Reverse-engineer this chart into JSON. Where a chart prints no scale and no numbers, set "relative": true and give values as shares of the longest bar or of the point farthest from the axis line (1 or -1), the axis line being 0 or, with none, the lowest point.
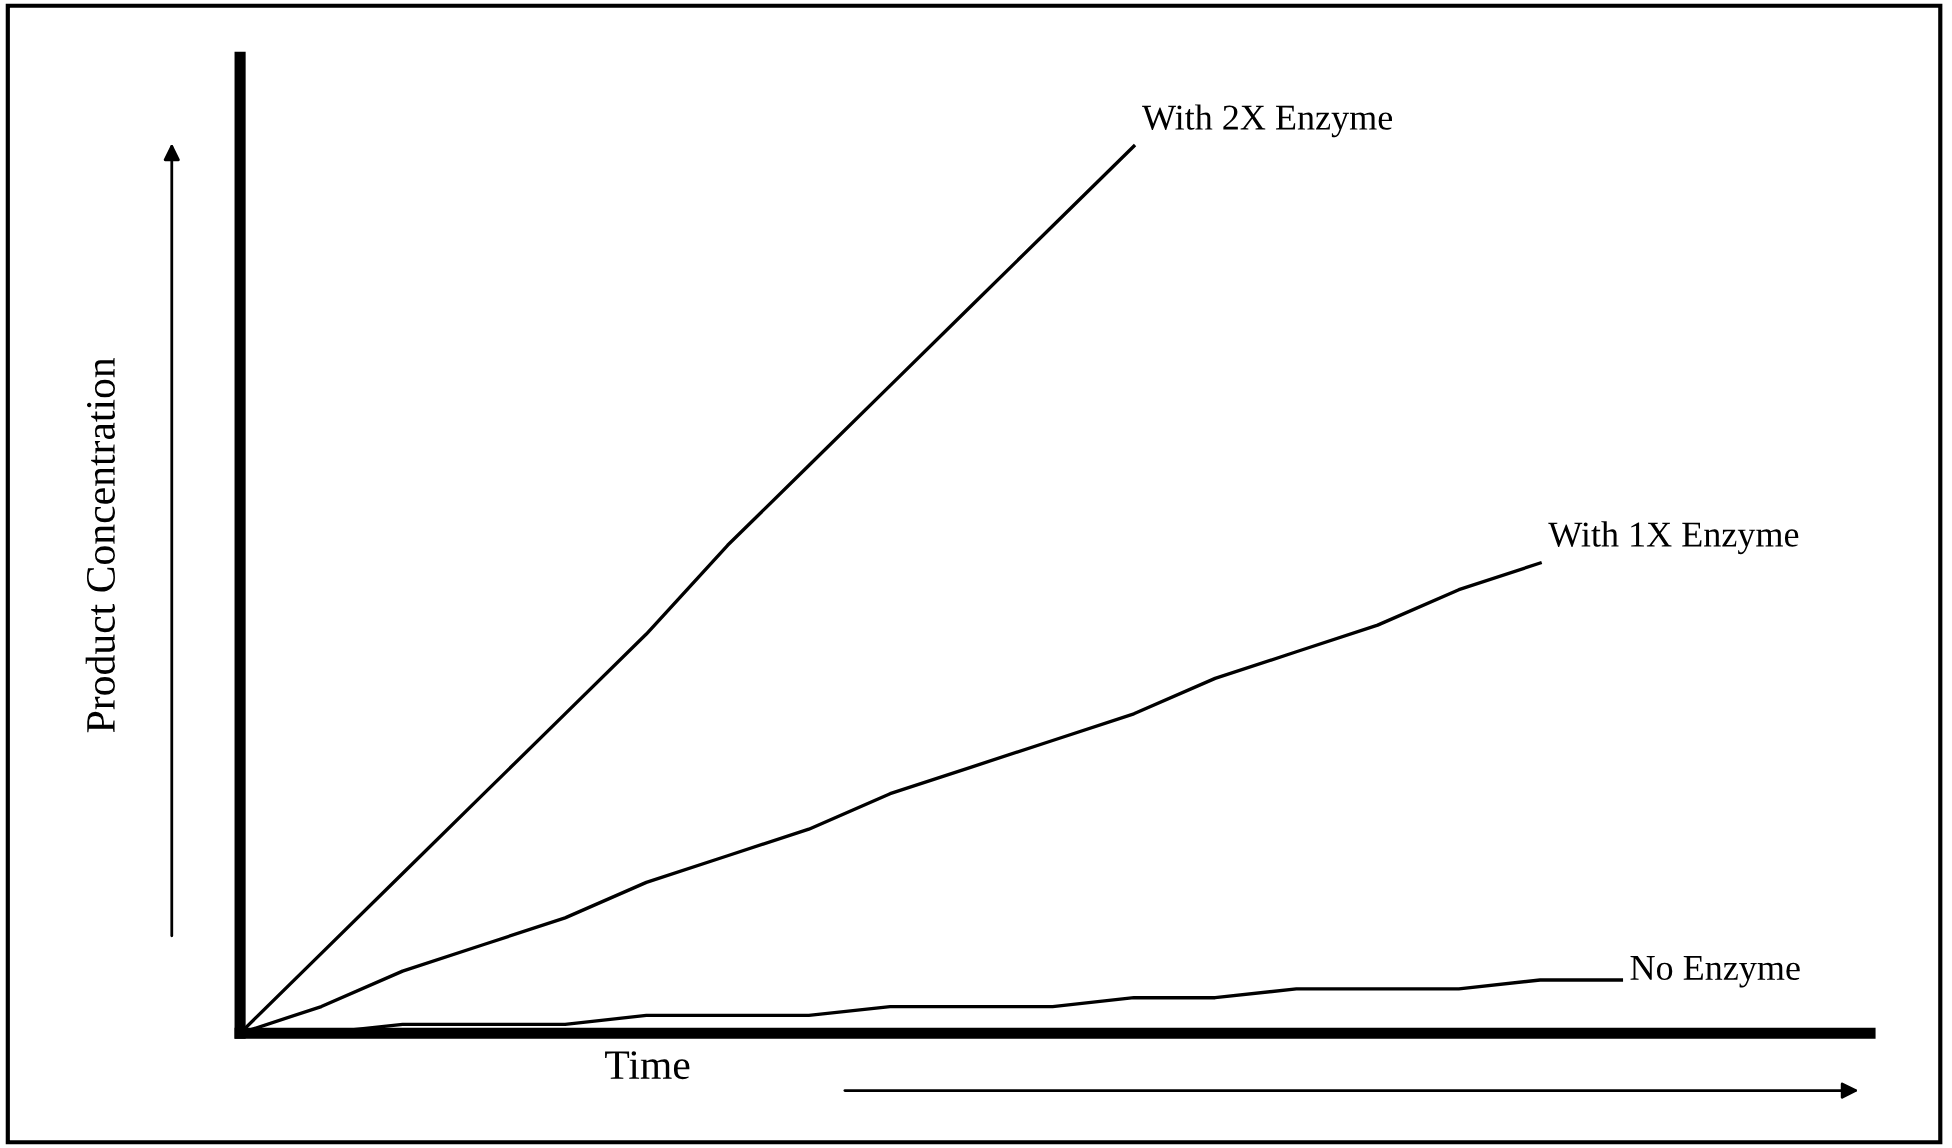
{
  "chart_data": {
    "type": "line",
    "relative": true,
    "xlabel": "Time",
    "ylabel": "Product Concentration",
    "categories": [
      null,
      null,
      null,
      null,
      null,
      null,
      null,
      null,
      null,
      null,
      null,
      null,
      null,
      null,
      null,
      null,
      null,
      null
    ],
    "series": [
      {
        "name": "With 2X Enzyme",
        "color": "#000000",
        "values": [
          0,
          0.09,
          0.18,
          0.27,
          0.36,
          0.45,
          0.55,
          0.64,
          0.73,
          0.82,
          0.91,
          1,
          null,
          null,
          null,
          null,
          null,
          null
        ]
      },
      {
        "name": "With 1X Enzyme",
        "color": "#000000",
        "values": [
          0,
          0.03,
          0.07,
          0.1,
          0.13,
          0.17,
          0.2,
          0.23,
          0.27,
          0.3,
          0.33,
          0.36,
          0.4,
          0.43,
          0.46,
          0.5,
          0.53,
          null
        ]
      },
      {
        "name": "No Enzyme",
        "color": "#000000",
        "values": [
          0,
          0,
          0.01,
          0.01,
          0.01,
          0.02,
          0.02,
          0.02,
          0.03,
          0.03,
          0.03,
          0.04,
          0.04,
          0.05,
          0.05,
          0.05,
          0.06,
          0.06
        ]
      }
    ],
    "legend": false,
    "marker": "none",
    "line_style": "solid"
  }
}
